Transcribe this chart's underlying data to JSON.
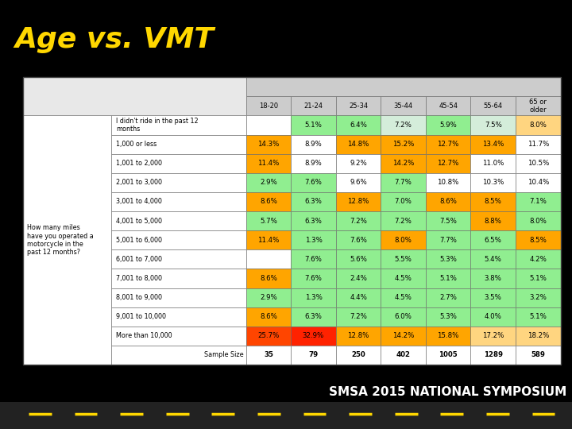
{
  "title": "Age vs. VMT",
  "title_color": "#FFD700",
  "title_bg": "#000000",
  "footer_text": "SMSA 2015 NATIONAL SYMPOSIUM",
  "col_headers": [
    "18-20",
    "21-24",
    "25-34",
    "35-44",
    "45-54",
    "55-64",
    "65 or\nolder"
  ],
  "row_label_q": "How many miles\nhave you operated a\nmotorcycle in the\npast 12 months?",
  "row_labels_col2": [
    "I didn't ride in the past 12\nmonths",
    "1,000 or less",
    "1,001 to 2,000",
    "2,001 to 3,000",
    "3,001 to 4,000",
    "4,001 to 5,000",
    "5,001 to 6,000",
    "6,001 to 7,000",
    "7,001 to 8,000",
    "8,001 to 9,000",
    "9,001 to 10,000",
    "More than 10,000",
    "Sample Size"
  ],
  "table_data": [
    [
      "",
      "5.1%",
      "6.4%",
      "7.2%",
      "5.9%",
      "7.5%",
      "8.0%"
    ],
    [
      "14.3%",
      "8.9%",
      "14.8%",
      "15.2%",
      "12.7%",
      "13.4%",
      "11.7%"
    ],
    [
      "11.4%",
      "8.9%",
      "9.2%",
      "14.2%",
      "12.7%",
      "11.0%",
      "10.5%"
    ],
    [
      "2.9%",
      "7.6%",
      "9.6%",
      "7.7%",
      "10.8%",
      "10.3%",
      "10.4%"
    ],
    [
      "8.6%",
      "6.3%",
      "12.8%",
      "7.0%",
      "8.6%",
      "8.5%",
      "7.1%"
    ],
    [
      "5.7%",
      "6.3%",
      "7.2%",
      "7.2%",
      "7.5%",
      "8.8%",
      "8.0%"
    ],
    [
      "11.4%",
      "1.3%",
      "7.6%",
      "8.0%",
      "7.7%",
      "6.5%",
      "8.5%"
    ],
    [
      "",
      "7.6%",
      "5.6%",
      "5.5%",
      "5.3%",
      "5.4%",
      "4.2%"
    ],
    [
      "8.6%",
      "7.6%",
      "2.4%",
      "4.5%",
      "5.1%",
      "3.8%",
      "5.1%"
    ],
    [
      "2.9%",
      "1.3%",
      "4.4%",
      "4.5%",
      "2.7%",
      "3.5%",
      "3.2%"
    ],
    [
      "8.6%",
      "6.3%",
      "7.2%",
      "6.0%",
      "5.3%",
      "4.0%",
      "5.1%"
    ],
    [
      "25.7%",
      "32.9%",
      "12.8%",
      "14.2%",
      "15.8%",
      "17.2%",
      "18.2%"
    ],
    [
      "35",
      "79",
      "250",
      "402",
      "1005",
      "1289",
      "589"
    ]
  ],
  "cell_colors": [
    [
      "#ffffff",
      "#90EE90",
      "#90EE90",
      "#d4edda",
      "#90EE90",
      "#d4edda",
      "#FFD580"
    ],
    [
      "#FFA500",
      "#ffffff",
      "#FFA500",
      "#FFA500",
      "#FFA500",
      "#FFA500",
      "#ffffff"
    ],
    [
      "#FFA500",
      "#ffffff",
      "#ffffff",
      "#FFA500",
      "#FFA500",
      "#ffffff",
      "#ffffff"
    ],
    [
      "#90EE90",
      "#90EE90",
      "#ffffff",
      "#90EE90",
      "#ffffff",
      "#ffffff",
      "#ffffff"
    ],
    [
      "#FFA500",
      "#90EE90",
      "#FFA500",
      "#90EE90",
      "#FFA500",
      "#FFA500",
      "#90EE90"
    ],
    [
      "#90EE90",
      "#90EE90",
      "#90EE90",
      "#90EE90",
      "#90EE90",
      "#FFA500",
      "#90EE90"
    ],
    [
      "#FFA500",
      "#90EE90",
      "#90EE90",
      "#FFA500",
      "#90EE90",
      "#90EE90",
      "#FFA500"
    ],
    [
      "#ffffff",
      "#90EE90",
      "#90EE90",
      "#90EE90",
      "#90EE90",
      "#90EE90",
      "#90EE90"
    ],
    [
      "#FFA500",
      "#90EE90",
      "#90EE90",
      "#90EE90",
      "#90EE90",
      "#90EE90",
      "#90EE90"
    ],
    [
      "#90EE90",
      "#90EE90",
      "#90EE90",
      "#90EE90",
      "#90EE90",
      "#90EE90",
      "#90EE90"
    ],
    [
      "#FFA500",
      "#90EE90",
      "#90EE90",
      "#90EE90",
      "#90EE90",
      "#90EE90",
      "#90EE90"
    ],
    [
      "#FF4500",
      "#FF2200",
      "#FFA500",
      "#FFA500",
      "#FFA500",
      "#FFD580",
      "#FFD580"
    ],
    [
      "#ffffff",
      "#ffffff",
      "#ffffff",
      "#ffffff",
      "#ffffff",
      "#ffffff",
      "#ffffff"
    ]
  ],
  "bg_color": "#000000",
  "table_area": [
    0.04,
    0.15,
    0.94,
    0.67
  ],
  "title_area": [
    0.0,
    0.83,
    1.0,
    0.17
  ],
  "footer_area": [
    0.0,
    0.0,
    1.0,
    0.14
  ]
}
